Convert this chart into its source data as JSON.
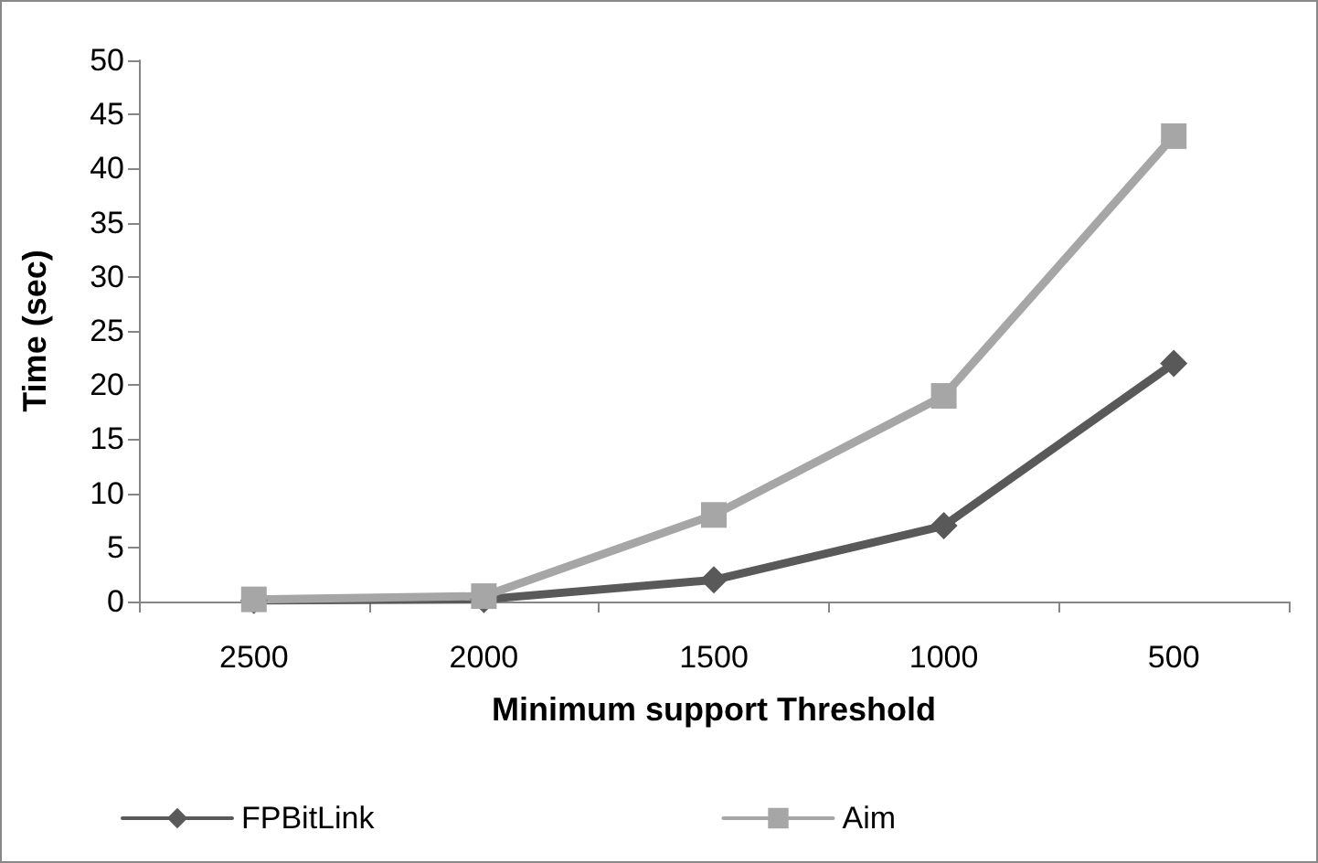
{
  "chart_data": {
    "type": "line",
    "xlabel": "Minimum support Threshold",
    "ylabel": "Time (sec)",
    "categories": [
      "2500",
      "2000",
      "1500",
      "1000",
      "500"
    ],
    "series": [
      {
        "name": "FPBitLink",
        "color": "#595959",
        "marker": "diamond",
        "values": [
          0.1,
          0.2,
          2,
          7,
          22
        ]
      },
      {
        "name": "Aim",
        "color": "#a6a6a6",
        "marker": "square",
        "values": [
          0.2,
          0.5,
          8,
          19,
          43
        ]
      }
    ],
    "ylim": [
      0,
      50
    ],
    "yticks": [
      0,
      5,
      10,
      15,
      20,
      25,
      30,
      35,
      40,
      45,
      50
    ],
    "grid": false,
    "legend": "bottom",
    "line_style": "solid"
  }
}
